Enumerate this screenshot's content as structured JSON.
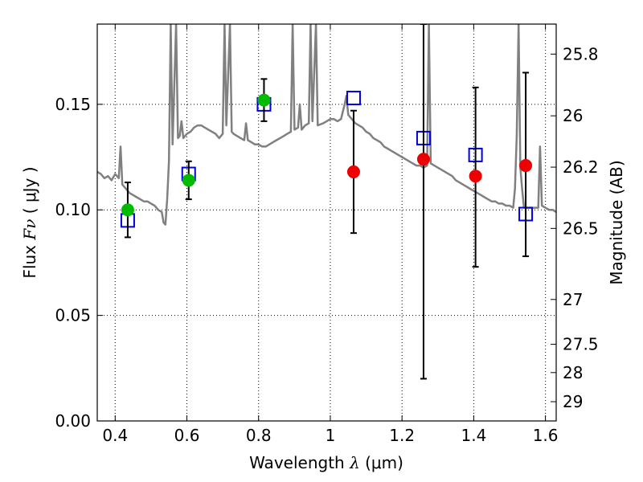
{
  "chart_data": {
    "type": "scatter",
    "title": "",
    "xlabel": {
      "prefix": "Wavelength  ",
      "symbol": "λ",
      "suffix": " (μm)"
    },
    "ylabel": {
      "prefix": "Flux  ",
      "symbol": "Fν",
      "suffix": "  ( μJy )"
    },
    "y2label": "Magnitude (AB)",
    "xlim": [
      0.35,
      1.63
    ],
    "ylim": [
      0.0,
      0.188
    ],
    "grid": true,
    "x_ticks": [
      {
        "value": 0.4,
        "label": "0.4"
      },
      {
        "value": 0.6,
        "label": "0.6"
      },
      {
        "value": 0.8,
        "label": "0.8"
      },
      {
        "value": 1.0,
        "label": "1"
      },
      {
        "value": 1.2,
        "label": "1.2"
      },
      {
        "value": 1.4,
        "label": "1.4"
      },
      {
        "value": 1.6,
        "label": "1.6"
      }
    ],
    "y_ticks": [
      {
        "value": 0.0,
        "label": "0.00"
      },
      {
        "value": 0.05,
        "label": "0.05"
      },
      {
        "value": 0.1,
        "label": "0.10"
      },
      {
        "value": 0.15,
        "label": "0.15"
      }
    ],
    "y2_ticks": [
      {
        "mag": 25.8,
        "label": "25.8"
      },
      {
        "mag": 26.0,
        "label": "26"
      },
      {
        "mag": 26.2,
        "label": "26.2"
      },
      {
        "mag": 26.5,
        "label": "26.5"
      },
      {
        "mag": 27.0,
        "label": "27"
      },
      {
        "mag": 27.5,
        "label": "27.5"
      },
      {
        "mag": 28.0,
        "label": "28"
      },
      {
        "mag": 29.0,
        "label": "29"
      }
    ],
    "model_sed": {
      "color": "#808080",
      "points": [
        [
          0.35,
          0.118
        ],
        [
          0.36,
          0.117
        ],
        [
          0.37,
          0.115
        ],
        [
          0.38,
          0.116
        ],
        [
          0.39,
          0.114
        ],
        [
          0.4,
          0.117
        ],
        [
          0.41,
          0.115
        ],
        [
          0.415,
          0.13
        ],
        [
          0.42,
          0.112
        ],
        [
          0.43,
          0.11
        ],
        [
          0.44,
          0.108
        ],
        [
          0.45,
          0.107
        ],
        [
          0.46,
          0.106
        ],
        [
          0.47,
          0.105
        ],
        [
          0.48,
          0.104
        ],
        [
          0.49,
          0.104
        ],
        [
          0.5,
          0.103
        ],
        [
          0.51,
          0.102
        ],
        [
          0.52,
          0.1
        ],
        [
          0.53,
          0.099
        ],
        [
          0.535,
          0.094
        ],
        [
          0.54,
          0.093
        ],
        [
          0.545,
          0.105
        ],
        [
          0.55,
          0.123
        ],
        [
          0.555,
          0.188
        ],
        [
          0.56,
          0.131
        ],
        [
          0.57,
          0.188
        ],
        [
          0.575,
          0.134
        ],
        [
          0.58,
          0.135
        ],
        [
          0.585,
          0.142
        ],
        [
          0.59,
          0.134
        ],
        [
          0.6,
          0.136
        ],
        [
          0.61,
          0.137
        ],
        [
          0.62,
          0.139
        ],
        [
          0.63,
          0.14
        ],
        [
          0.64,
          0.14
        ],
        [
          0.65,
          0.139
        ],
        [
          0.66,
          0.138
        ],
        [
          0.67,
          0.137
        ],
        [
          0.68,
          0.136
        ],
        [
          0.69,
          0.134
        ],
        [
          0.7,
          0.136
        ],
        [
          0.705,
          0.188
        ],
        [
          0.71,
          0.14
        ],
        [
          0.72,
          0.188
        ],
        [
          0.725,
          0.137
        ],
        [
          0.73,
          0.136
        ],
        [
          0.74,
          0.135
        ],
        [
          0.75,
          0.134
        ],
        [
          0.76,
          0.133
        ],
        [
          0.765,
          0.141
        ],
        [
          0.77,
          0.133
        ],
        [
          0.78,
          0.132
        ],
        [
          0.79,
          0.131
        ],
        [
          0.8,
          0.131
        ],
        [
          0.81,
          0.13
        ],
        [
          0.82,
          0.13
        ],
        [
          0.83,
          0.131
        ],
        [
          0.84,
          0.132
        ],
        [
          0.85,
          0.133
        ],
        [
          0.86,
          0.134
        ],
        [
          0.87,
          0.135
        ],
        [
          0.88,
          0.136
        ],
        [
          0.89,
          0.137
        ],
        [
          0.895,
          0.188
        ],
        [
          0.9,
          0.138
        ],
        [
          0.91,
          0.139
        ],
        [
          0.915,
          0.15
        ],
        [
          0.92,
          0.138
        ],
        [
          0.93,
          0.14
        ],
        [
          0.94,
          0.141
        ],
        [
          0.945,
          0.188
        ],
        [
          0.95,
          0.142
        ],
        [
          0.96,
          0.188
        ],
        [
          0.965,
          0.14
        ],
        [
          0.98,
          0.141
        ],
        [
          0.99,
          0.142
        ],
        [
          1.0,
          0.143
        ],
        [
          1.01,
          0.143
        ],
        [
          1.02,
          0.142
        ],
        [
          1.03,
          0.143
        ],
        [
          1.04,
          0.15
        ],
        [
          1.045,
          0.154
        ],
        [
          1.05,
          0.145
        ],
        [
          1.06,
          0.143
        ],
        [
          1.07,
          0.141
        ],
        [
          1.08,
          0.14
        ],
        [
          1.09,
          0.139
        ],
        [
          1.1,
          0.137
        ],
        [
          1.11,
          0.136
        ],
        [
          1.12,
          0.134
        ],
        [
          1.13,
          0.133
        ],
        [
          1.14,
          0.132
        ],
        [
          1.15,
          0.13
        ],
        [
          1.16,
          0.129
        ],
        [
          1.17,
          0.128
        ],
        [
          1.18,
          0.127
        ],
        [
          1.19,
          0.126
        ],
        [
          1.2,
          0.125
        ],
        [
          1.21,
          0.124
        ],
        [
          1.22,
          0.123
        ],
        [
          1.23,
          0.122
        ],
        [
          1.24,
          0.121
        ],
        [
          1.25,
          0.121
        ],
        [
          1.26,
          0.12
        ],
        [
          1.27,
          0.121
        ],
        [
          1.275,
          0.188
        ],
        [
          1.28,
          0.122
        ],
        [
          1.29,
          0.121
        ],
        [
          1.3,
          0.12
        ],
        [
          1.31,
          0.119
        ],
        [
          1.32,
          0.118
        ],
        [
          1.33,
          0.117
        ],
        [
          1.34,
          0.116
        ],
        [
          1.35,
          0.114
        ],
        [
          1.36,
          0.113
        ],
        [
          1.37,
          0.112
        ],
        [
          1.38,
          0.111
        ],
        [
          1.39,
          0.11
        ],
        [
          1.4,
          0.109
        ],
        [
          1.41,
          0.108
        ],
        [
          1.42,
          0.107
        ],
        [
          1.43,
          0.106
        ],
        [
          1.44,
          0.105
        ],
        [
          1.45,
          0.104
        ],
        [
          1.46,
          0.104
        ],
        [
          1.47,
          0.103
        ],
        [
          1.48,
          0.103
        ],
        [
          1.49,
          0.102
        ],
        [
          1.5,
          0.102
        ],
        [
          1.51,
          0.101
        ],
        [
          1.515,
          0.11
        ],
        [
          1.52,
          0.135
        ],
        [
          1.525,
          0.188
        ],
        [
          1.53,
          0.12
        ],
        [
          1.535,
          0.11
        ],
        [
          1.54,
          0.101
        ],
        [
          1.55,
          0.101
        ],
        [
          1.56,
          0.101
        ],
        [
          1.57,
          0.101
        ],
        [
          1.58,
          0.101
        ],
        [
          1.585,
          0.13
        ],
        [
          1.59,
          0.102
        ],
        [
          1.6,
          0.101
        ],
        [
          1.61,
          0.1
        ],
        [
          1.62,
          0.1
        ],
        [
          1.63,
          0.099
        ]
      ]
    },
    "series": [
      {
        "marker": "square-open",
        "color": "#0000dd",
        "points": [
          {
            "x": 0.435,
            "y": 0.095
          },
          {
            "x": 0.605,
            "y": 0.117
          },
          {
            "x": 0.815,
            "y": 0.15
          },
          {
            "x": 1.065,
            "y": 0.153
          },
          {
            "x": 1.26,
            "y": 0.134
          },
          {
            "x": 1.405,
            "y": 0.126
          },
          {
            "x": 1.545,
            "y": 0.098
          }
        ]
      },
      {
        "marker": "circle",
        "color": "#00bb00",
        "points": [
          {
            "x": 0.435,
            "y": 0.1,
            "ylow": 0.087,
            "yhigh": 0.113
          },
          {
            "x": 0.605,
            "y": 0.114,
            "ylow": 0.105,
            "yhigh": 0.123
          },
          {
            "x": 0.815,
            "y": 0.152,
            "ylow": 0.142,
            "yhigh": 0.162
          }
        ]
      },
      {
        "marker": "circle",
        "color": "#ee0000",
        "points": [
          {
            "x": 1.065,
            "y": 0.118,
            "ylow": 0.089,
            "yhigh": 0.147
          },
          {
            "x": 1.26,
            "y": 0.124,
            "ylow": 0.02,
            "yhigh": 0.188
          },
          {
            "x": 1.405,
            "y": 0.116,
            "ylow": 0.073,
            "yhigh": 0.158
          },
          {
            "x": 1.545,
            "y": 0.121,
            "ylow": 0.078,
            "yhigh": 0.165
          }
        ]
      }
    ]
  }
}
